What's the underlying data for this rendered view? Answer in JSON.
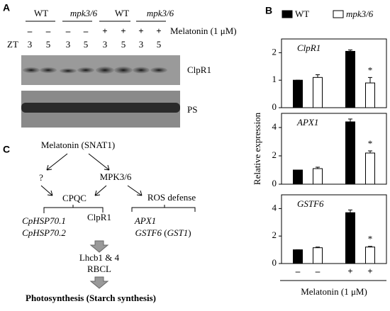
{
  "panel_a": {
    "label": "A",
    "groups": [
      "WT",
      "mpk3/6",
      "WT",
      "mpk3/6"
    ],
    "treatment": [
      "–",
      "–",
      "–",
      "–",
      "+",
      "+",
      "+",
      "+"
    ],
    "treatment_label": "Melatonin (1 μM)",
    "zt_label": "ZT",
    "zt": [
      3,
      5,
      3,
      5,
      3,
      5,
      3,
      5
    ],
    "blots": [
      "ClpR1",
      "PS"
    ]
  },
  "panel_b": {
    "label": "B"
  },
  "chart_data": [
    {
      "type": "bar",
      "title": "ClpR1",
      "ylim": [
        0,
        2.5
      ],
      "yticks": [
        0,
        1,
        2
      ],
      "annotation": "*",
      "series": [
        {
          "name": "WT",
          "color": "#000000",
          "values": [
            1,
            2.05
          ],
          "errors": [
            0,
            0.05
          ]
        },
        {
          "name": "mpk3/6",
          "color": "#ffffff",
          "values": [
            1.1,
            0.9
          ],
          "errors": [
            0.1,
            0.2
          ]
        }
      ]
    },
    {
      "type": "bar",
      "title": "APX1",
      "ylim": [
        0,
        5
      ],
      "yticks": [
        0,
        2,
        4
      ],
      "annotation": "*",
      "ylabel": "Relative expression",
      "series": [
        {
          "color": "#000000",
          "values": [
            1,
            4.4
          ],
          "errors": [
            0,
            0.2
          ]
        },
        {
          "color": "#ffffff",
          "values": [
            1.1,
            2.2
          ],
          "errors": [
            0.1,
            0.15
          ]
        }
      ]
    },
    {
      "type": "bar",
      "title": "GSTF6",
      "ylim": [
        0,
        5
      ],
      "yticks": [
        0,
        2,
        4
      ],
      "annotation": "*",
      "categories": [
        "–",
        "+"
      ],
      "xlabel": "Melatonin (1 μM)",
      "series": [
        {
          "color": "#000000",
          "values": [
            1,
            3.7
          ],
          "errors": [
            0,
            0.2
          ]
        },
        {
          "color": "#ffffff",
          "values": [
            1.15,
            1.2
          ],
          "errors": [
            0.05,
            0.05
          ]
        }
      ]
    }
  ],
  "panel_c": {
    "label": "C",
    "nodes": {
      "melatonin": "Melatonin (SNAT1)",
      "unknown": "?",
      "mpk": "MPK3/6",
      "cpqc": "CPQC",
      "ros": "ROS defense",
      "hsp1": "CpHSP70.1",
      "hsp2": "CpHSP70.2",
      "clpr1": "ClpR1",
      "apx1": "APX1",
      "gstf6": [
        "GSTF6",
        "(",
        "GST1",
        ")"
      ],
      "lhcb": "Lhcb1 & 4",
      "rbcl": "RBCL",
      "photo": "Photosynthesis (Starch synthesis)"
    }
  }
}
